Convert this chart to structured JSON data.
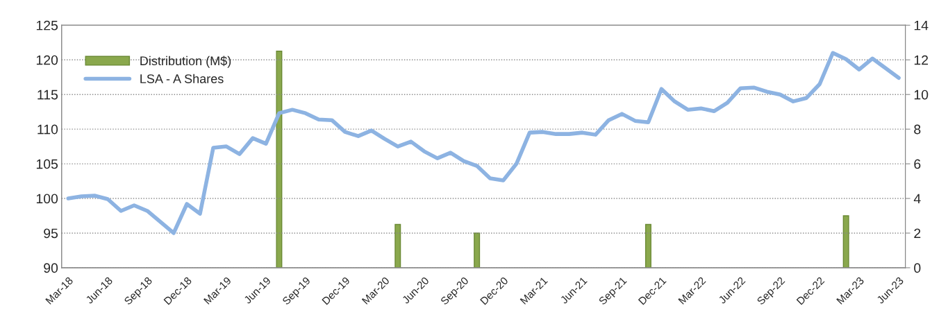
{
  "chart_data": {
    "type": "line",
    "categories": [
      "Mar-18",
      null,
      null,
      "Jun-18",
      null,
      null,
      "Sep-18",
      null,
      null,
      "Dec-18",
      null,
      null,
      "Mar-19",
      null,
      null,
      "Jun-19",
      null,
      null,
      "Sep-19",
      null,
      null,
      "Dec-19",
      null,
      null,
      "Mar-20",
      null,
      null,
      "Jun-20",
      null,
      null,
      "Sep-20",
      null,
      null,
      "Dec-20",
      null,
      null,
      "Mar-21",
      null,
      null,
      "Jun-21",
      null,
      null,
      "Sep-21",
      null,
      null,
      "Dec-21",
      null,
      null,
      "Mar-22",
      null,
      null,
      "Jun-22",
      null,
      null,
      "Sep-22",
      null,
      null,
      "Dec-22",
      null,
      null,
      "Mar-23",
      null,
      null,
      "Jun-23"
    ],
    "series": [
      {
        "name": "Distribution (M$)",
        "type": "bar",
        "axis": "y2",
        "color": "#8aa84d",
        "values": [
          null,
          null,
          null,
          null,
          null,
          null,
          null,
          null,
          null,
          null,
          null,
          null,
          null,
          null,
          null,
          null,
          12.5,
          null,
          null,
          null,
          null,
          null,
          null,
          null,
          null,
          2.5,
          null,
          null,
          null,
          null,
          null,
          2.0,
          null,
          null,
          null,
          null,
          null,
          null,
          null,
          null,
          null,
          null,
          null,
          null,
          2.5,
          null,
          null,
          null,
          null,
          null,
          null,
          null,
          null,
          null,
          null,
          null,
          null,
          null,
          null,
          3.0,
          null,
          null,
          null,
          null
        ]
      },
      {
        "name": "LSA - A Shares",
        "color": "#8db3e2",
        "values": [
          100.0,
          100.3,
          100.4,
          99.9,
          98.2,
          99.0,
          98.2,
          96.6,
          95.0,
          99.2,
          97.8,
          107.3,
          107.5,
          106.4,
          108.7,
          107.9,
          112.3,
          112.8,
          112.3,
          111.4,
          111.3,
          109.6,
          109.0,
          109.8,
          108.6,
          107.5,
          108.2,
          106.8,
          105.8,
          106.6,
          105.4,
          104.7,
          102.9,
          102.6,
          105.0,
          109.5,
          109.6,
          109.3,
          109.3,
          109.5,
          109.2,
          111.3,
          112.2,
          111.2,
          111.0,
          115.8,
          114.0,
          112.8,
          113.0,
          112.6,
          113.8,
          115.9,
          116.0,
          115.4,
          115.0,
          114.0,
          114.5,
          116.5,
          121.0,
          120.1,
          118.6,
          120.2,
          118.8,
          117.4
        ]
      }
    ],
    "ylim": [
      90,
      125
    ],
    "yticks": [
      90,
      95,
      100,
      105,
      110,
      115,
      120,
      125
    ],
    "y2lim": [
      0,
      14
    ],
    "y2ticks": [
      0,
      2,
      4,
      6,
      8,
      10,
      12,
      14
    ],
    "grid": "y",
    "legend": "top left",
    "line_style": "solid",
    "marker": "none"
  }
}
